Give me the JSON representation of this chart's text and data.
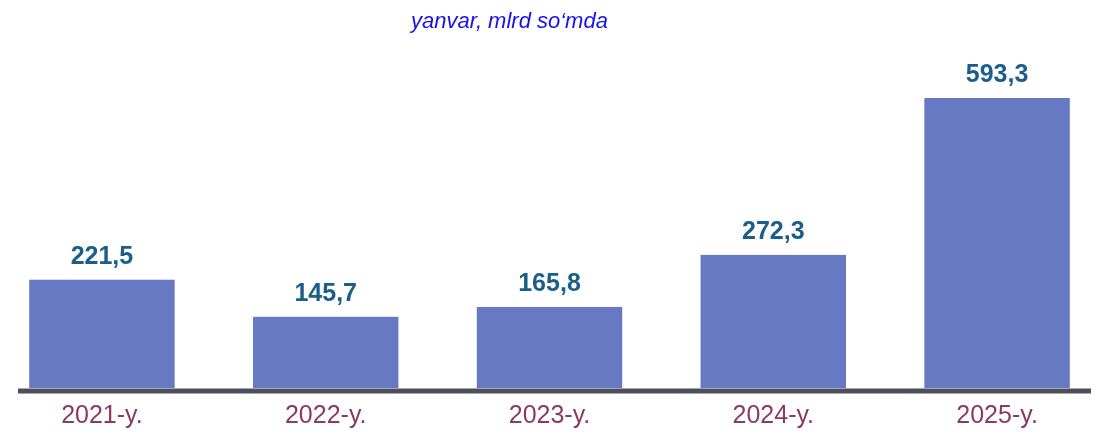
{
  "chart_data": {
    "type": "bar",
    "subtitle": "yanvar, mlrd so‘mda",
    "categories": [
      "2021-y.",
      "2022-y.",
      "2023-y.",
      "2024-y.",
      "2025-y."
    ],
    "values": [
      221.5,
      145.7,
      165.8,
      272.3,
      593.3
    ],
    "value_labels": [
      "221,5",
      "145,7",
      "165,8",
      "272,3",
      "593,3"
    ],
    "color": "#6879c4"
  }
}
